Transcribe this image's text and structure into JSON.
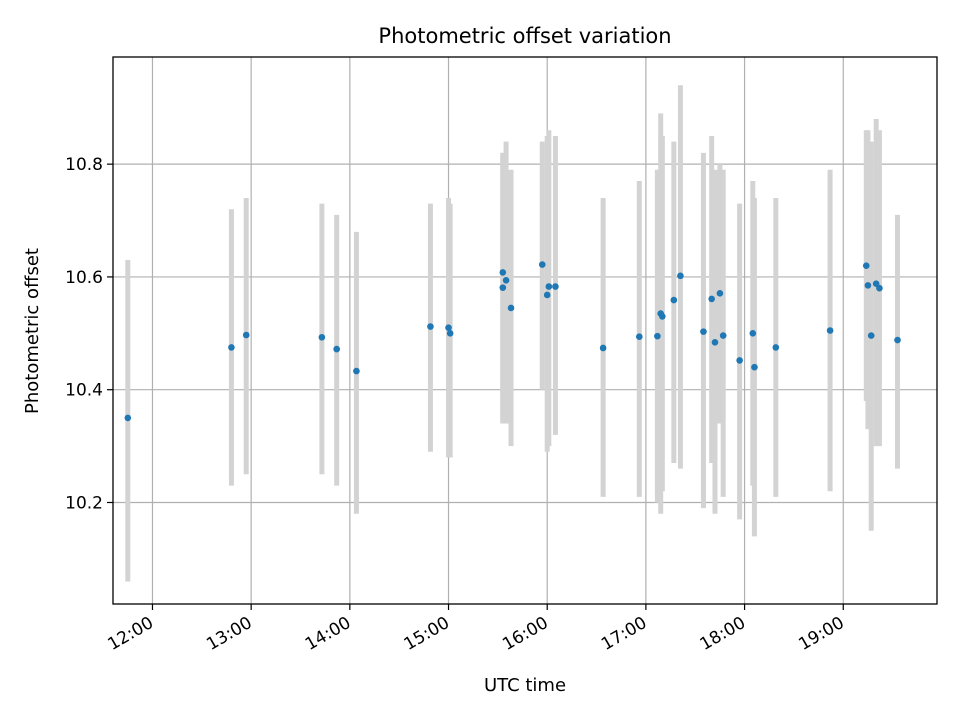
{
  "chart_data": {
    "type": "scatter",
    "title": "Photometric offset variation",
    "xlabel": "UTC time",
    "ylabel": "Photometric offset",
    "x_axis_kind": "time",
    "xlim": [
      "11:36",
      "19:57"
    ],
    "ylim": [
      10.02,
      10.99
    ],
    "x_ticks": [
      "12:00",
      "13:00",
      "14:00",
      "15:00",
      "16:00",
      "17:00",
      "18:00",
      "19:00"
    ],
    "y_ticks": [
      "10.2",
      "10.4",
      "10.6",
      "10.8"
    ],
    "grid": true,
    "legend": "none",
    "colors": {
      "point": "#1f77b4",
      "errorbar": "#d3d3d3"
    },
    "points": [
      {
        "t": "11:45",
        "y": 10.35,
        "low": 10.06,
        "high": 10.63
      },
      {
        "t": "12:48",
        "y": 10.475,
        "low": 10.23,
        "high": 10.72
      },
      {
        "t": "12:57",
        "y": 10.497,
        "low": 10.25,
        "high": 10.74
      },
      {
        "t": "13:43",
        "y": 10.493,
        "low": 10.25,
        "high": 10.73
      },
      {
        "t": "13:52",
        "y": 10.472,
        "low": 10.23,
        "high": 10.71
      },
      {
        "t": "14:04",
        "y": 10.433,
        "low": 10.18,
        "high": 10.68
      },
      {
        "t": "14:49",
        "y": 10.512,
        "low": 10.29,
        "high": 10.73
      },
      {
        "t": "15:00",
        "y": 10.51,
        "low": 10.28,
        "high": 10.74
      },
      {
        "t": "15:01",
        "y": 10.5,
        "low": 10.28,
        "high": 10.73
      },
      {
        "t": "15:33",
        "y": 10.608,
        "low": 10.34,
        "high": 10.82
      },
      {
        "t": "15:33",
        "y": 10.581,
        "low": 10.34,
        "high": 10.82
      },
      {
        "t": "15:35",
        "y": 10.594,
        "low": 10.34,
        "high": 10.84
      },
      {
        "t": "15:38",
        "y": 10.545,
        "low": 10.3,
        "high": 10.79
      },
      {
        "t": "15:57",
        "y": 10.622,
        "low": 10.4,
        "high": 10.84
      },
      {
        "t": "16:00",
        "y": 10.568,
        "low": 10.29,
        "high": 10.85
      },
      {
        "t": "16:01",
        "y": 10.583,
        "low": 10.3,
        "high": 10.86
      },
      {
        "t": "16:05",
        "y": 10.583,
        "low": 10.32,
        "high": 10.85
      },
      {
        "t": "16:34",
        "y": 10.474,
        "low": 10.21,
        "high": 10.74
      },
      {
        "t": "16:56",
        "y": 10.494,
        "low": 10.21,
        "high": 10.77
      },
      {
        "t": "17:07",
        "y": 10.495,
        "low": 10.2,
        "high": 10.79
      },
      {
        "t": "17:09",
        "y": 10.535,
        "low": 10.18,
        "high": 10.89
      },
      {
        "t": "17:10",
        "y": 10.53,
        "low": 10.22,
        "high": 10.85
      },
      {
        "t": "17:17",
        "y": 10.559,
        "low": 10.27,
        "high": 10.84
      },
      {
        "t": "17:21",
        "y": 10.602,
        "low": 10.26,
        "high": 10.94
      },
      {
        "t": "17:35",
        "y": 10.503,
        "low": 10.19,
        "high": 10.82
      },
      {
        "t": "17:40",
        "y": 10.561,
        "low": 10.27,
        "high": 10.85
      },
      {
        "t": "17:42",
        "y": 10.484,
        "low": 10.18,
        "high": 10.79
      },
      {
        "t": "17:45",
        "y": 10.571,
        "low": 10.34,
        "high": 10.8
      },
      {
        "t": "17:47",
        "y": 10.496,
        "low": 10.21,
        "high": 10.79
      },
      {
        "t": "17:57",
        "y": 10.452,
        "low": 10.17,
        "high": 10.73
      },
      {
        "t": "18:05",
        "y": 10.5,
        "low": 10.23,
        "high": 10.77
      },
      {
        "t": "18:06",
        "y": 10.44,
        "low": 10.14,
        "high": 10.74
      },
      {
        "t": "18:19",
        "y": 10.475,
        "low": 10.21,
        "high": 10.74
      },
      {
        "t": "18:52",
        "y": 10.505,
        "low": 10.22,
        "high": 10.79
      },
      {
        "t": "19:14",
        "y": 10.62,
        "low": 10.38,
        "high": 10.86
      },
      {
        "t": "19:15",
        "y": 10.585,
        "low": 10.33,
        "high": 10.86
      },
      {
        "t": "19:17",
        "y": 10.496,
        "low": 10.15,
        "high": 10.84
      },
      {
        "t": "19:20",
        "y": 10.588,
        "low": 10.3,
        "high": 10.88
      },
      {
        "t": "19:22",
        "y": 10.58,
        "low": 10.3,
        "high": 10.86
      },
      {
        "t": "19:33",
        "y": 10.488,
        "low": 10.26,
        "high": 10.71
      }
    ]
  }
}
